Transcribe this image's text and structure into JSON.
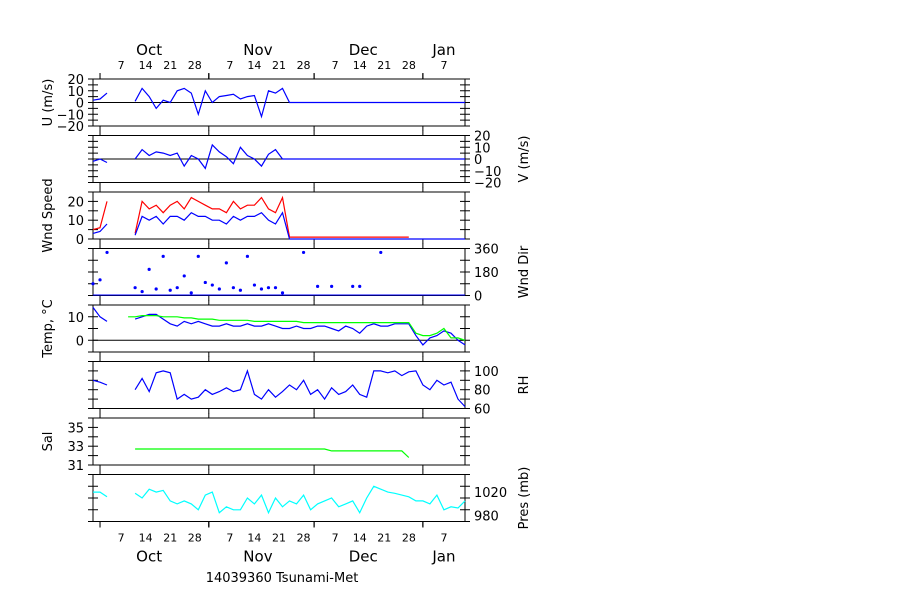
{
  "chart_data": {
    "type": "line",
    "title": "14039360 Tsunami-Met",
    "x_range": [
      "09-29",
      "01-13"
    ],
    "months": [
      {
        "label": "Oct",
        "date": "10-15"
      },
      {
        "label": "Nov",
        "date": "11-15"
      },
      {
        "label": "Dec",
        "date": "12-15"
      },
      {
        "label": "Jan",
        "date": "01-07"
      }
    ],
    "month_starts": [
      "10-01",
      "11-01",
      "12-01",
      "01-01"
    ],
    "day_ticks": [
      "10-07",
      "10-14",
      "10-21",
      "10-28",
      "11-07",
      "11-14",
      "11-21",
      "11-28",
      "12-07",
      "12-14",
      "12-21",
      "12-28",
      "01-07"
    ],
    "x": [
      "09-29",
      "10-01",
      "10-03",
      "10-05",
      "10-07",
      "10-09",
      "10-11",
      "10-13",
      "10-15",
      "10-17",
      "10-19",
      "10-21",
      "10-23",
      "10-25",
      "10-27",
      "10-29",
      "10-31",
      "11-02",
      "11-04",
      "11-06",
      "11-08",
      "11-10",
      "11-12",
      "11-14",
      "11-16",
      "11-18",
      "11-20",
      "11-22",
      "11-24",
      "11-26",
      "11-28",
      "11-30",
      "12-02",
      "12-04",
      "12-06",
      "12-08",
      "12-10",
      "12-12",
      "12-14",
      "12-16",
      "12-18",
      "12-20",
      "12-22",
      "12-24",
      "12-26",
      "12-28",
      "12-30",
      "01-01",
      "01-03",
      "01-05",
      "01-07",
      "01-09",
      "01-11",
      "01-13"
    ],
    "panels": [
      {
        "ylabel": "U (m/s)",
        "label_side": "left",
        "ylim": [
          -20,
          20
        ],
        "tick_step": 5,
        "tick_labels": [
          -20,
          -10,
          0,
          10,
          20
        ],
        "zero_line": true,
        "series": [
          {
            "color": "#0000ff",
            "style": "line",
            "values": [
              2,
              3,
              8,
              null,
              null,
              null,
              1,
              12,
              5,
              -5,
              2,
              0,
              10,
              12,
              8,
              -10,
              10,
              0,
              5,
              6,
              7,
              3,
              5,
              6,
              -12,
              10,
              8,
              12,
              0,
              0,
              0,
              0,
              0,
              0,
              0,
              0,
              0,
              0,
              0,
              0,
              0,
              0,
              0,
              0,
              0,
              0,
              0,
              0,
              0,
              0,
              0,
              0,
              0,
              0
            ]
          }
        ]
      },
      {
        "ylabel": "V (m/s)",
        "label_side": "right",
        "ylim": [
          -20,
          20
        ],
        "tick_step": 5,
        "tick_labels": [
          -20,
          -10,
          0,
          10,
          20
        ],
        "zero_line": true,
        "series": [
          {
            "color": "#0000ff",
            "style": "line",
            "values": [
              -2,
              0,
              -3,
              null,
              null,
              null,
              0,
              8,
              3,
              6,
              5,
              3,
              5,
              -6,
              3,
              0,
              -8,
              12,
              6,
              2,
              -4,
              10,
              3,
              0,
              -6,
              4,
              8,
              0,
              0,
              0,
              0,
              0,
              0,
              0,
              0,
              0,
              0,
              0,
              0,
              0,
              0,
              0,
              0,
              0,
              0,
              0,
              0,
              0,
              0,
              0,
              0,
              0,
              0,
              0
            ]
          }
        ]
      },
      {
        "ylabel": "Wnd Speed",
        "label_side": "left",
        "ylim": [
          0,
          25
        ],
        "tick_step": 5,
        "tick_labels": [
          0,
          10,
          20
        ],
        "zero_line": false,
        "series": [
          {
            "color": "#ff0000",
            "style": "line",
            "values": [
              5,
              6,
              20,
              null,
              null,
              null,
              3,
              20,
              16,
              18,
              14,
              18,
              20,
              16,
              22,
              20,
              18,
              16,
              16,
              14,
              20,
              16,
              18,
              18,
              22,
              16,
              14,
              22,
              1,
              1,
              1,
              1,
              1,
              1,
              1,
              1,
              1,
              1,
              1,
              1,
              1,
              1,
              1,
              1,
              1,
              1,
              null,
              null,
              null,
              null,
              null,
              null,
              null,
              null
            ]
          },
          {
            "color": "#0000ff",
            "style": "line",
            "values": [
              3,
              4,
              8,
              null,
              null,
              null,
              2,
              12,
              10,
              12,
              8,
              12,
              12,
              10,
              14,
              12,
              12,
              10,
              10,
              8,
              12,
              10,
              12,
              12,
              14,
              10,
              8,
              14,
              0,
              0,
              0,
              0,
              0,
              0,
              0,
              0,
              0,
              0,
              0,
              0,
              0,
              0,
              0,
              0,
              0,
              0,
              0,
              0,
              0,
              0,
              0,
              0,
              0,
              0
            ]
          }
        ]
      },
      {
        "ylabel": "Wnd Dir",
        "label_side": "right",
        "ylim": [
          0,
          360
        ],
        "tick_step": 90,
        "tick_labels": [
          0,
          180,
          360
        ],
        "zero_line": false,
        "series": [
          {
            "color": "#0000ff",
            "style": "dots",
            "values": [
              90,
              120,
              330,
              null,
              null,
              null,
              60,
              30,
              200,
              50,
              300,
              40,
              60,
              150,
              20,
              300,
              100,
              80,
              50,
              250,
              60,
              40,
              300,
              80,
              50,
              60,
              60,
              20,
              null,
              null,
              330,
              null,
              70,
              null,
              70,
              null,
              null,
              70,
              70,
              null,
              null,
              330,
              null,
              null,
              null,
              null,
              null,
              null,
              null,
              null,
              null,
              null,
              null,
              null
            ]
          }
        ]
      },
      {
        "ylabel": "Temp, °C",
        "label_side": "left",
        "ylim": [
          -5,
          15
        ],
        "tick_step": 5,
        "tick_labels": [
          0,
          10
        ],
        "zero_line": true,
        "series": [
          {
            "color": "#0000ff",
            "style": "line",
            "values": [
              14,
              10,
              8,
              null,
              null,
              null,
              9,
              10,
              11,
              11,
              9,
              7,
              6,
              8,
              7,
              8,
              7,
              6,
              6,
              7,
              6,
              6,
              7,
              6,
              6,
              7,
              6,
              5,
              5,
              6,
              5,
              5,
              6,
              6,
              5,
              4,
              6,
              5,
              3,
              6,
              7,
              6,
              6,
              7,
              7,
              7,
              2,
              -2,
              1,
              2,
              4,
              3,
              0,
              -2
            ]
          },
          {
            "color": "#00ff00",
            "style": "line",
            "values": [
              null,
              null,
              null,
              null,
              null,
              10,
              10,
              10.5,
              10.5,
              10.5,
              10,
              10,
              10,
              9.5,
              9.5,
              9,
              9,
              9,
              8.5,
              8.5,
              8.5,
              8.5,
              8.5,
              8,
              8,
              8,
              8,
              8,
              8,
              8,
              7.5,
              7.5,
              7.5,
              7.5,
              7.5,
              7.5,
              7.5,
              7.5,
              7.5,
              7.5,
              7.5,
              7.5,
              7.5,
              7.5,
              7.5,
              7.5,
              3,
              2,
              2,
              3,
              5,
              1,
              1,
              0
            ]
          }
        ]
      },
      {
        "ylabel": "RH",
        "label_side": "right",
        "ylim": [
          60,
          110
        ],
        "tick_step": 10,
        "tick_labels": [
          60,
          80,
          100
        ],
        "zero_line": false,
        "series": [
          {
            "color": "#0000ff",
            "style": "line",
            "values": [
              90,
              88,
              85,
              null,
              null,
              null,
              80,
              92,
              78,
              98,
              100,
              98,
              70,
              75,
              70,
              72,
              80,
              75,
              78,
              82,
              78,
              80,
              100,
              75,
              70,
              80,
              72,
              78,
              85,
              80,
              90,
              75,
              80,
              70,
              82,
              75,
              78,
              85,
              75,
              72,
              100,
              100,
              98,
              100,
              95,
              99,
              100,
              85,
              80,
              90,
              85,
              88,
              70,
              62
            ]
          }
        ]
      },
      {
        "ylabel": "Sal",
        "label_side": "left",
        "ylim": [
          31,
          36
        ],
        "tick_step": 1,
        "tick_labels": [
          31,
          33,
          35
        ],
        "zero_line": false,
        "series": [
          {
            "color": "#00ff00",
            "style": "line",
            "values": [
              null,
              null,
              null,
              null,
              null,
              null,
              32.7,
              32.7,
              32.7,
              32.7,
              32.7,
              32.7,
              32.7,
              32.7,
              32.7,
              32.7,
              32.7,
              32.7,
              32.7,
              32.7,
              32.7,
              32.7,
              32.7,
              32.7,
              32.7,
              32.7,
              32.7,
              32.7,
              32.7,
              32.7,
              32.7,
              32.7,
              32.7,
              32.7,
              32.5,
              32.5,
              32.5,
              32.5,
              32.5,
              32.5,
              32.5,
              32.5,
              32.5,
              32.5,
              32.5,
              31.8,
              null,
              null,
              null,
              null,
              null,
              null,
              null,
              null
            ]
          }
        ]
      },
      {
        "ylabel": "Pres (mb)",
        "label_side": "right",
        "ylim": [
          970,
          1050
        ],
        "tick_step": 20,
        "tick_labels": [
          980,
          1020
        ],
        "zero_line": false,
        "series": [
          {
            "color": "#00ffff",
            "style": "line",
            "values": [
              1020,
              1020,
              1012,
              null,
              null,
              null,
              1018,
              1010,
              1025,
              1020,
              1023,
              1005,
              1000,
              1005,
              1000,
              990,
              1015,
              1020,
              985,
              995,
              990,
              990,
              1010,
              1000,
              1015,
              985,
              1010,
              995,
              1005,
              1000,
              1015,
              990,
              1000,
              1005,
              1010,
              995,
              1000,
              1005,
              985,
              1010,
              1030,
              1025,
              1020,
              1018,
              1015,
              1012,
              1005,
              1005,
              1000,
              1015,
              990,
              995,
              993,
              1005
            ]
          }
        ]
      }
    ]
  }
}
